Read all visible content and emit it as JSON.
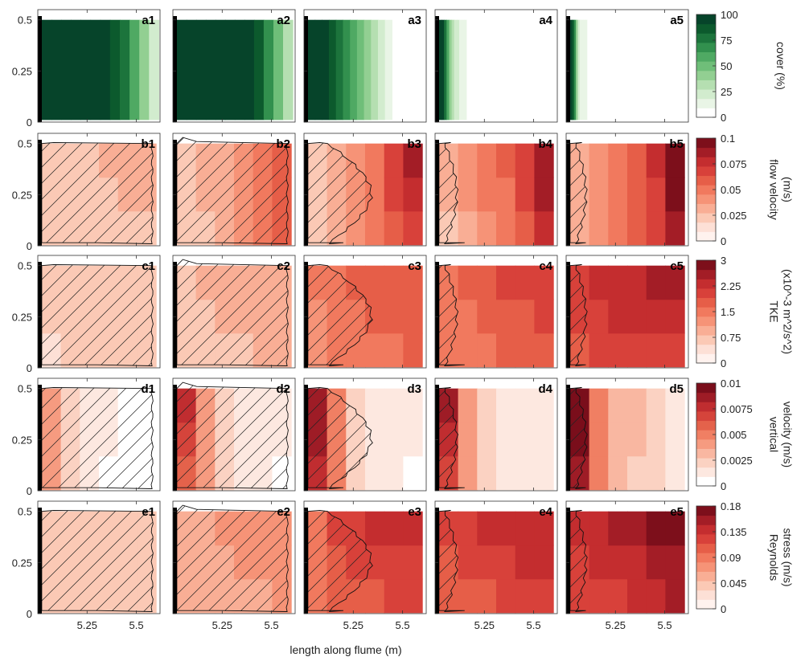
{
  "chart_data": {
    "type": "heatmap",
    "title": "",
    "xlabel": "length along flume (m)",
    "x_ticks": [
      5.25,
      5.5
    ],
    "xlim": [
      5.0,
      5.62
    ],
    "ylim": [
      0,
      0.55
    ],
    "y_ticks": [
      0,
      0.25,
      0.5
    ],
    "y_tick_labels": [
      "0",
      "0.25",
      "0.5"
    ],
    "x_tick_labels": [
      "5.25",
      "5.5"
    ],
    "grid": false,
    "rows": [
      {
        "row": "a",
        "colorbar_label": [
          "cover (%)"
        ],
        "colorbar_ticks": [
          "100",
          "75",
          "50",
          "25",
          "0"
        ],
        "colorbar_range": [
          0,
          100
        ],
        "colors": [
          "#ffffff",
          "#e9f5e6",
          "#d2ecce",
          "#b5dfb1",
          "#92cf92",
          "#6fbe79",
          "#4fa963",
          "#32904e",
          "#1c743c",
          "#0c5a2d",
          "#06442a"
        ],
        "panels": [
          {
            "label": "a1",
            "extent": 0.99,
            "levels": [
              10,
              10,
              10,
              10,
              10,
              10,
              10,
              9,
              8,
              6,
              4,
              2
            ]
          },
          {
            "label": "a2",
            "extent": 0.98,
            "levels": [
              10,
              10,
              10,
              10,
              10,
              10,
              10,
              10,
              9,
              7,
              5,
              3
            ]
          },
          {
            "label": "a3",
            "extent": 0.72,
            "levels": [
              10,
              10,
              10,
              9,
              8,
              7,
              6,
              5,
              4,
              3,
              2,
              1
            ]
          },
          {
            "label": "a4",
            "extent": 0.28,
            "levels": [
              10,
              10,
              8,
              6,
              4,
              3,
              2,
              2,
              1,
              1,
              1,
              0
            ]
          },
          {
            "label": "a5",
            "extent": 0.22,
            "levels": [
              10,
              9,
              7,
              4,
              2,
              1,
              1,
              1,
              1,
              0,
              0,
              0
            ]
          }
        ]
      },
      {
        "row": "b",
        "colorbar_label": [
          "flow velocity",
          "(m/s)"
        ],
        "colorbar_ticks": [
          "0.1",
          "0.075",
          "0.05",
          "0.025",
          "0"
        ],
        "colorbar_range": [
          0,
          0.1
        ],
        "colors": [
          "#fff2ee",
          "#fde0d6",
          "#fbc9b5",
          "#f9ae95",
          "#f69377",
          "#f1795e",
          "#e65e48",
          "#d8413a",
          "#c42d2f",
          "#a31d26",
          "#7d0f1b"
        ],
        "panels": [
          {
            "label": "b1",
            "levels": [
              0.018,
              0.02,
              0.022,
              0.024,
              0.025,
              0.026
            ]
          },
          {
            "label": "b2",
            "levels": [
              0.02,
              0.026,
              0.032,
              0.04,
              0.05,
              0.06
            ]
          },
          {
            "label": "b3",
            "levels": [
              0.02,
              0.03,
              0.04,
              0.05,
              0.065,
              0.08
            ]
          },
          {
            "label": "b4",
            "levels": [
              0.025,
              0.035,
              0.045,
              0.055,
              0.065,
              0.085
            ]
          },
          {
            "label": "b5",
            "levels": [
              0.03,
              0.04,
              0.05,
              0.06,
              0.075,
              0.1
            ]
          }
        ]
      },
      {
        "row": "c",
        "colorbar_label": [
          "TKE",
          "(x10^-3 m^2/s^2)"
        ],
        "colorbar_ticks": [
          "3",
          "2.25",
          "1.5",
          "0.75",
          "0"
        ],
        "colorbar_range": [
          0,
          3
        ],
        "colors": [
          "#fff2ee",
          "#fde0d6",
          "#fbc9b5",
          "#f9ae95",
          "#f69377",
          "#f1795e",
          "#e65e48",
          "#d8413a",
          "#c42d2f",
          "#a31d26",
          "#7d0f1b"
        ],
        "panels": [
          {
            "label": "c1",
            "levels": [
              0.45,
              0.5,
              0.5,
              0.55,
              0.55,
              0.6
            ]
          },
          {
            "label": "c2",
            "levels": [
              0.6,
              0.7,
              0.75,
              0.8,
              0.85,
              0.9
            ]
          },
          {
            "label": "c3",
            "levels": [
              1.3,
              1.5,
              1.6,
              1.7,
              1.75,
              1.8
            ]
          },
          {
            "label": "c4",
            "levels": [
              1.5,
              1.65,
              1.75,
              1.85,
              1.9,
              2.0
            ]
          },
          {
            "label": "c5",
            "levels": [
              2.0,
              2.2,
              2.3,
              2.35,
              2.4,
              2.4
            ]
          }
        ]
      },
      {
        "row": "d",
        "colorbar_label": [
          "vertical",
          "velocity (m/s)"
        ],
        "colorbar_ticks": [
          "0.01",
          "0.0075",
          "0.005",
          "0.0025",
          "0"
        ],
        "colorbar_range": [
          0,
          0.01
        ],
        "colors": [
          "#ffffff",
          "#fde8e0",
          "#fbd2c2",
          "#f9b7a1",
          "#f69b80",
          "#f07f63",
          "#e4624b",
          "#d5443b",
          "#c02d30",
          "#9e1c26",
          "#7a0e1b"
        ],
        "panels": [
          {
            "label": "d1",
            "levels": [
              0.004,
              0.002,
              0.001,
              0.0005,
              0.0003,
              0.0002
            ]
          },
          {
            "label": "d2",
            "levels": [
              0.007,
              0.004,
              0.002,
              0.001,
              0.0007,
              0.0005
            ]
          },
          {
            "label": "d3",
            "levels": [
              0.0085,
              0.005,
              0.002,
              0.0012,
              0.0008,
              0.0005
            ]
          },
          {
            "label": "d4",
            "levels": [
              0.008,
              0.004,
              0.0018,
              0.0012,
              0.001,
              0.0008
            ]
          },
          {
            "label": "d5",
            "levels": [
              0.0095,
              0.005,
              0.003,
              0.0025,
              0.0018,
              0.001
            ]
          }
        ]
      },
      {
        "row": "e",
        "colorbar_label": [
          "Reynolds",
          "stress (m/s)"
        ],
        "colorbar_ticks": [
          "0.18",
          "0.135",
          "0.09",
          "0.045",
          "0"
        ],
        "colorbar_range": [
          0,
          0.18
        ],
        "colors": [
          "#fff2ee",
          "#fde0d6",
          "#fbc9b5",
          "#f9ae95",
          "#f69377",
          "#f1795e",
          "#e65e48",
          "#d8413a",
          "#c42d2f",
          "#a31d26",
          "#7d0f1b"
        ],
        "panels": [
          {
            "label": "e1",
            "levels": [
              0.03,
              0.032,
              0.034,
              0.036,
              0.038,
              0.04
            ]
          },
          {
            "label": "e2",
            "levels": [
              0.05,
              0.055,
              0.06,
              0.065,
              0.068,
              0.07
            ]
          },
          {
            "label": "e3",
            "levels": [
              0.09,
              0.11,
              0.12,
              0.125,
              0.13,
              0.13
            ]
          },
          {
            "label": "e4",
            "levels": [
              0.11,
              0.12,
              0.125,
              0.13,
              0.135,
              0.135
            ]
          },
          {
            "label": "e5",
            "levels": [
              0.13,
              0.14,
              0.145,
              0.15,
              0.16,
              0.17
            ]
          }
        ]
      }
    ]
  }
}
